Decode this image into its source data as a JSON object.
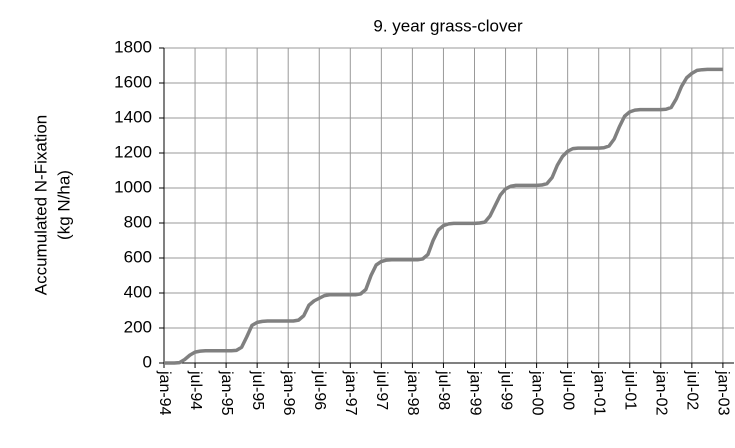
{
  "chart_data": {
    "type": "line",
    "title": "9. year grass-clover",
    "y_label": [
      "Accumulated N-Fixation",
      "(kg N/ha)"
    ],
    "x": [
      "jan-94",
      "feb-94",
      "mar-94",
      "apr-94",
      "may-94",
      "jun-94",
      "jul-94",
      "aug-94",
      "sep-94",
      "oct-94",
      "nov-94",
      "dec-94",
      "jan-95",
      "feb-95",
      "mar-95",
      "apr-95",
      "may-95",
      "jun-95",
      "jul-95",
      "aug-95",
      "sep-95",
      "oct-95",
      "nov-95",
      "dec-95",
      "jan-96",
      "feb-96",
      "mar-96",
      "apr-96",
      "may-96",
      "jun-96",
      "jul-96",
      "aug-96",
      "sep-96",
      "oct-96",
      "nov-96",
      "dec-96",
      "jan-97",
      "feb-97",
      "mar-97",
      "apr-97",
      "may-97",
      "jun-97",
      "jul-97",
      "aug-97",
      "sep-97",
      "oct-97",
      "nov-97",
      "dec-97",
      "jan-98",
      "feb-98",
      "mar-98",
      "apr-98",
      "may-98",
      "jun-98",
      "jul-98",
      "aug-98",
      "sep-98",
      "oct-98",
      "nov-98",
      "dec-98",
      "jan-99",
      "feb-99",
      "mar-99",
      "apr-99",
      "may-99",
      "jun-99",
      "jul-99",
      "aug-99",
      "sep-99",
      "oct-99",
      "nov-99",
      "dec-99",
      "jan-00",
      "feb-00",
      "mar-00",
      "apr-00",
      "may-00",
      "jun-00",
      "jul-00",
      "aug-00",
      "sep-00",
      "oct-00",
      "nov-00",
      "dec-00",
      "jan-01",
      "feb-01",
      "mar-01",
      "apr-01",
      "may-01",
      "jun-01",
      "jul-01",
      "aug-01",
      "sep-01",
      "oct-01",
      "nov-01",
      "dec-01",
      "jan-02",
      "feb-02",
      "mar-02",
      "apr-02",
      "may-02",
      "jun-02",
      "jul-02",
      "aug-02",
      "sep-02",
      "oct-02",
      "nov-02",
      "dec-02",
      "jan-03"
    ],
    "series": [
      {
        "color": "#808080",
        "values": [
          0,
          0,
          0,
          2,
          20,
          45,
          62,
          68,
          70,
          70,
          70,
          70,
          70,
          70,
          72,
          90,
          150,
          215,
          232,
          238,
          240,
          240,
          240,
          240,
          240,
          240,
          245,
          270,
          330,
          355,
          370,
          385,
          390,
          390,
          390,
          390,
          390,
          390,
          395,
          420,
          500,
          560,
          580,
          588,
          590,
          590,
          590,
          590,
          590,
          590,
          595,
          620,
          700,
          760,
          785,
          795,
          798,
          798,
          798,
          798,
          798,
          800,
          805,
          840,
          900,
          960,
          995,
          1010,
          1015,
          1015,
          1015,
          1015,
          1015,
          1017,
          1025,
          1060,
          1130,
          1180,
          1210,
          1225,
          1228,
          1228,
          1228,
          1228,
          1228,
          1230,
          1240,
          1280,
          1350,
          1410,
          1435,
          1445,
          1448,
          1448,
          1448,
          1448,
          1448,
          1450,
          1460,
          1510,
          1580,
          1630,
          1655,
          1672,
          1676,
          1678,
          1678,
          1678,
          1678
        ]
      }
    ],
    "xticks": [
      "jan-94",
      "jul-94",
      "jan-95",
      "jul-95",
      "jan-96",
      "jul-96",
      "jan-97",
      "jul-97",
      "jan-98",
      "jul-98",
      "jan-99",
      "jul-99",
      "jan-00",
      "jul-00",
      "jan-01",
      "jul-01",
      "jan-02",
      "jul-02",
      "jan-03"
    ],
    "ylim": [
      0,
      1800
    ],
    "yticks": [
      0,
      200,
      400,
      600,
      800,
      1000,
      1200,
      1400,
      1600,
      1800
    ],
    "grid": true
  }
}
